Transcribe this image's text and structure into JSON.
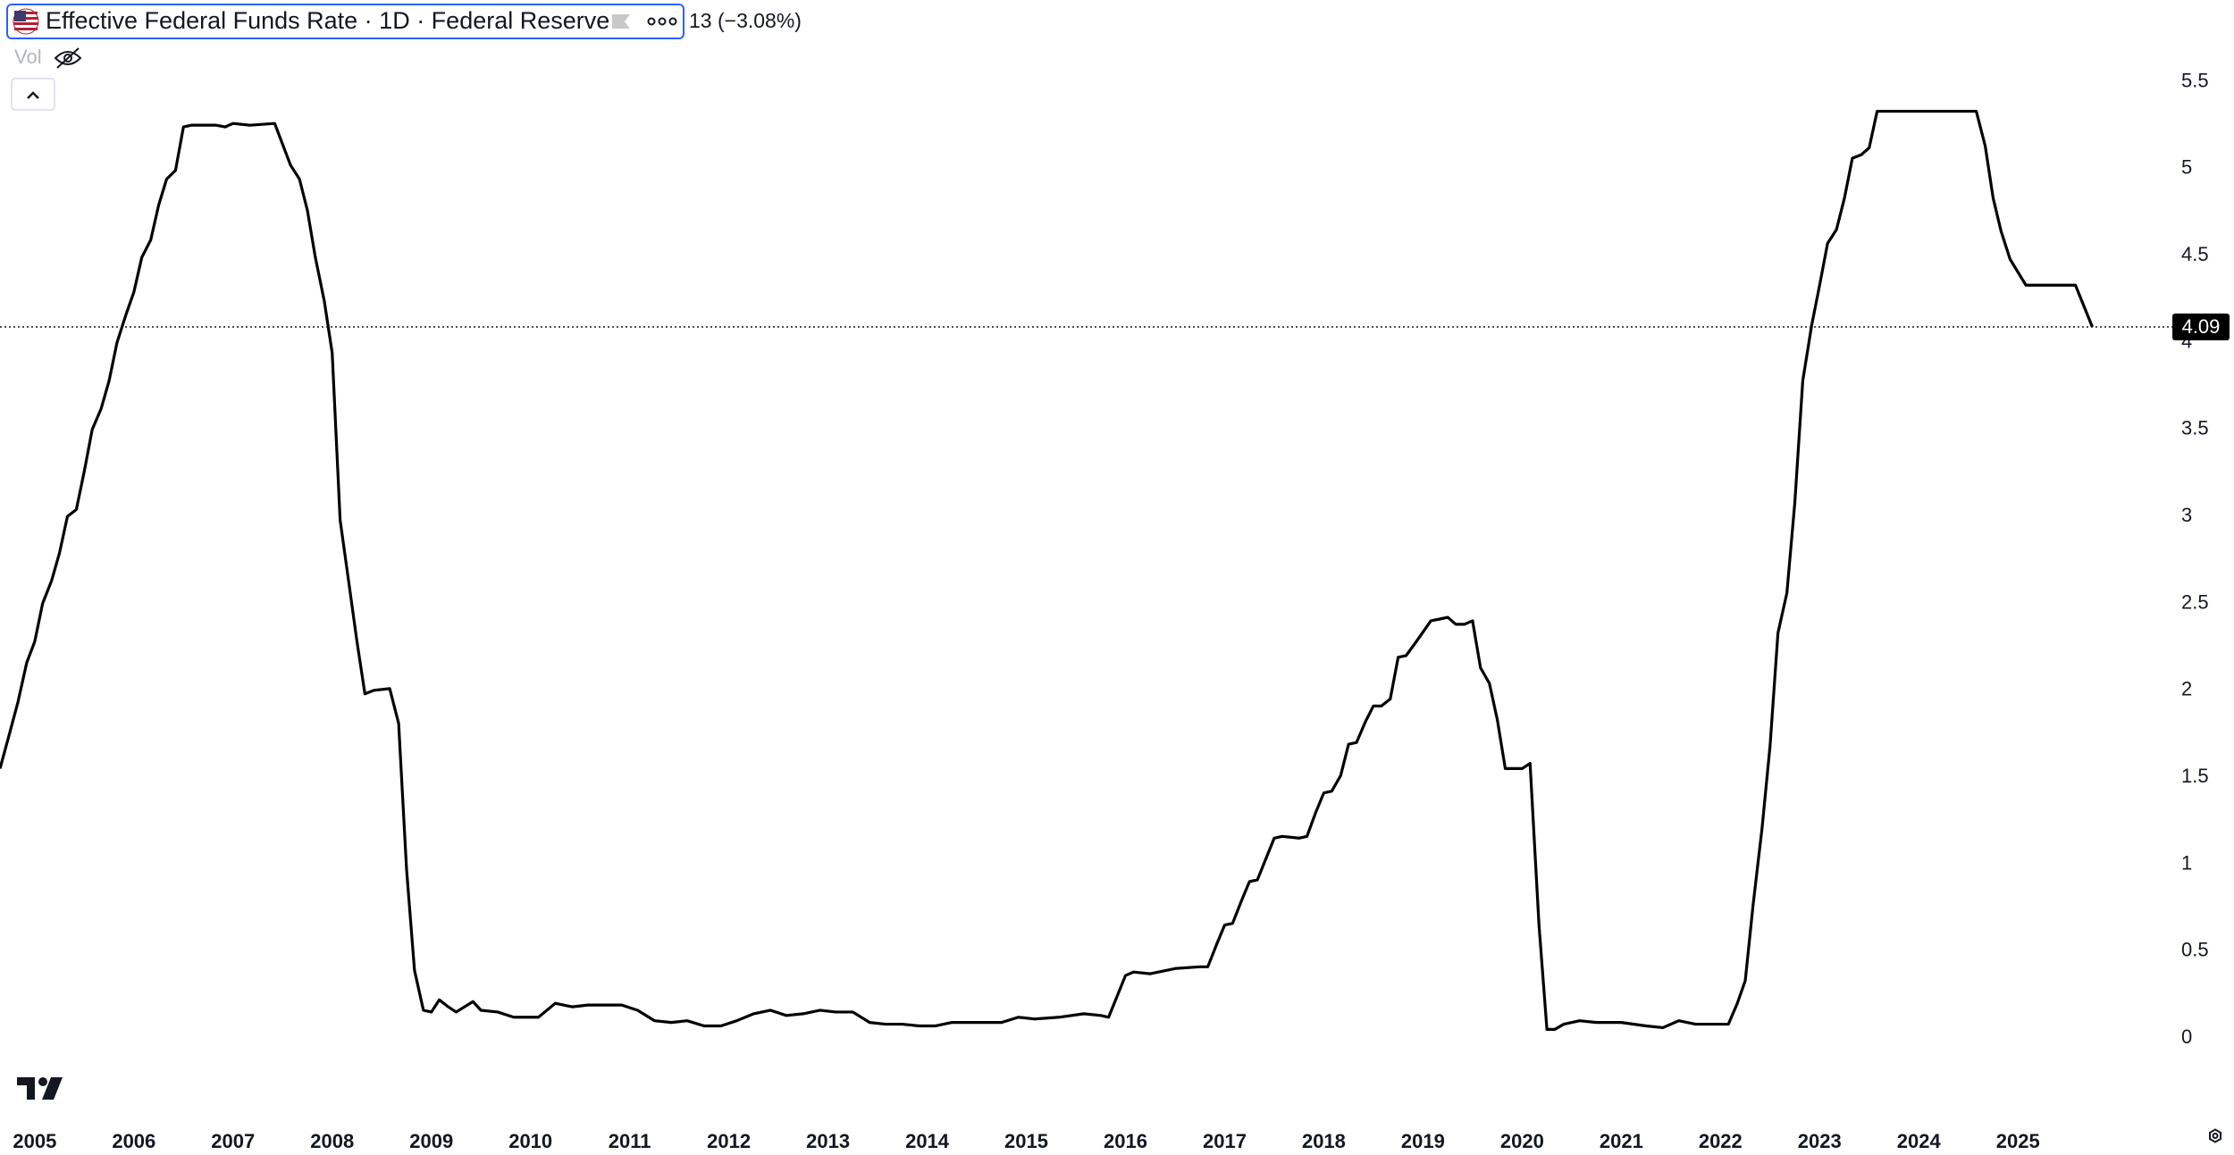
{
  "chart_data": {
    "type": "line",
    "title": "Effective Federal Funds Rate · 1D · Federal Reserve",
    "change_label": "13 (−3.08%)",
    "volume_label": "Vol",
    "color": "#000000",
    "grid": false,
    "last_value": 4.09,
    "x": [
      2004.65,
      2004.75,
      2004.83,
      2004.92,
      2005.0,
      2005.08,
      2005.17,
      2005.25,
      2005.33,
      2005.42,
      2005.5,
      2005.58,
      2005.67,
      2005.75,
      2005.83,
      2005.92,
      2006.0,
      2006.08,
      2006.17,
      2006.25,
      2006.33,
      2006.42,
      2006.5,
      2006.58,
      2006.83,
      2006.92,
      2007.0,
      2007.17,
      2007.42,
      2007.58,
      2007.67,
      2007.75,
      2007.83,
      2007.92,
      2008.0,
      2008.08,
      2008.17,
      2008.25,
      2008.33,
      2008.42,
      2008.58,
      2008.67,
      2008.75,
      2008.83,
      2008.92,
      2009.0,
      2009.08,
      2009.17,
      2009.25,
      2009.42,
      2009.5,
      2009.67,
      2009.83,
      2010.08,
      2010.25,
      2010.42,
      2010.58,
      2010.92,
      2011.08,
      2011.25,
      2011.42,
      2011.58,
      2011.75,
      2011.92,
      2012.08,
      2012.25,
      2012.42,
      2012.58,
      2012.75,
      2012.92,
      2013.08,
      2013.25,
      2013.42,
      2013.58,
      2013.75,
      2013.92,
      2014.08,
      2014.25,
      2014.58,
      2014.75,
      2014.92,
      2015.08,
      2015.33,
      2015.58,
      2015.75,
      2015.83,
      2016.0,
      2016.08,
      2016.25,
      2016.5,
      2016.75,
      2016.83,
      2016.92,
      2017.0,
      2017.08,
      2017.17,
      2017.25,
      2017.33,
      2017.5,
      2017.58,
      2017.75,
      2017.83,
      2017.92,
      2018.0,
      2018.08,
      2018.17,
      2018.25,
      2018.33,
      2018.42,
      2018.5,
      2018.58,
      2018.67,
      2018.75,
      2018.83,
      2018.92,
      2019.08,
      2019.17,
      2019.25,
      2019.33,
      2019.42,
      2019.5,
      2019.58,
      2019.67,
      2019.75,
      2019.83,
      2019.92,
      2020.0,
      2020.08,
      2020.17,
      2020.25,
      2020.33,
      2020.42,
      2020.58,
      2020.75,
      2021.0,
      2021.25,
      2021.42,
      2021.58,
      2021.75,
      2022.0,
      2022.08,
      2022.17,
      2022.25,
      2022.33,
      2022.42,
      2022.5,
      2022.58,
      2022.67,
      2022.75,
      2022.83,
      2022.92,
      2023.0,
      2023.08,
      2023.17,
      2023.25,
      2023.33,
      2023.42,
      2023.5,
      2023.58,
      2024.58,
      2024.67,
      2024.75,
      2024.83,
      2024.92,
      2025.08,
      2025.58,
      2025.75
    ],
    "values": [
      1.55,
      1.76,
      1.93,
      2.16,
      2.28,
      2.5,
      2.63,
      2.79,
      3.0,
      3.04,
      3.26,
      3.5,
      3.62,
      3.78,
      4.0,
      4.16,
      4.29,
      4.49,
      4.59,
      4.79,
      4.94,
      4.99,
      5.24,
      5.25,
      5.25,
      5.24,
      5.26,
      5.25,
      5.26,
      5.02,
      4.94,
      4.76,
      4.49,
      4.24,
      3.94,
      2.98,
      2.61,
      2.28,
      1.98,
      2.0,
      2.01,
      1.81,
      0.97,
      0.39,
      0.16,
      0.15,
      0.22,
      0.18,
      0.15,
      0.21,
      0.16,
      0.15,
      0.12,
      0.12,
      0.2,
      0.18,
      0.19,
      0.19,
      0.16,
      0.1,
      0.09,
      0.1,
      0.07,
      0.07,
      0.1,
      0.14,
      0.16,
      0.13,
      0.14,
      0.16,
      0.15,
      0.15,
      0.09,
      0.08,
      0.08,
      0.07,
      0.07,
      0.09,
      0.09,
      0.09,
      0.12,
      0.11,
      0.12,
      0.14,
      0.13,
      0.12,
      0.36,
      0.38,
      0.37,
      0.4,
      0.41,
      0.41,
      0.54,
      0.65,
      0.66,
      0.79,
      0.9,
      0.91,
      1.15,
      1.16,
      1.15,
      1.16,
      1.3,
      1.41,
      1.42,
      1.51,
      1.69,
      1.7,
      1.82,
      1.91,
      1.91,
      1.95,
      2.19,
      2.2,
      2.27,
      2.4,
      2.41,
      2.42,
      2.38,
      2.38,
      2.4,
      2.13,
      2.04,
      1.83,
      1.55,
      1.55,
      1.55,
      1.58,
      0.65,
      0.05,
      0.05,
      0.08,
      0.1,
      0.09,
      0.09,
      0.07,
      0.06,
      0.1,
      0.08,
      0.08,
      0.08,
      0.2,
      0.33,
      0.77,
      1.21,
      1.68,
      2.33,
      2.56,
      3.08,
      3.78,
      4.1,
      4.33,
      4.57,
      4.65,
      4.83,
      5.06,
      5.08,
      5.12,
      5.33,
      5.33,
      5.13,
      4.83,
      4.64,
      4.48,
      4.33,
      4.33,
      4.09
    ],
    "xlim": [
      2004.65,
      2026.53
    ],
    "xticks": [
      2005,
      2006,
      2007,
      2008,
      2009,
      2010,
      2011,
      2012,
      2013,
      2014,
      2015,
      2016,
      2017,
      2018,
      2019,
      2020,
      2021,
      2022,
      2023,
      2024,
      2025
    ],
    "ylim": [
      -0.4,
      5.97
    ],
    "yticks": [
      0,
      0.5,
      1,
      1.5,
      2,
      2.5,
      3,
      3.5,
      4,
      4.5,
      5,
      5.5
    ]
  }
}
